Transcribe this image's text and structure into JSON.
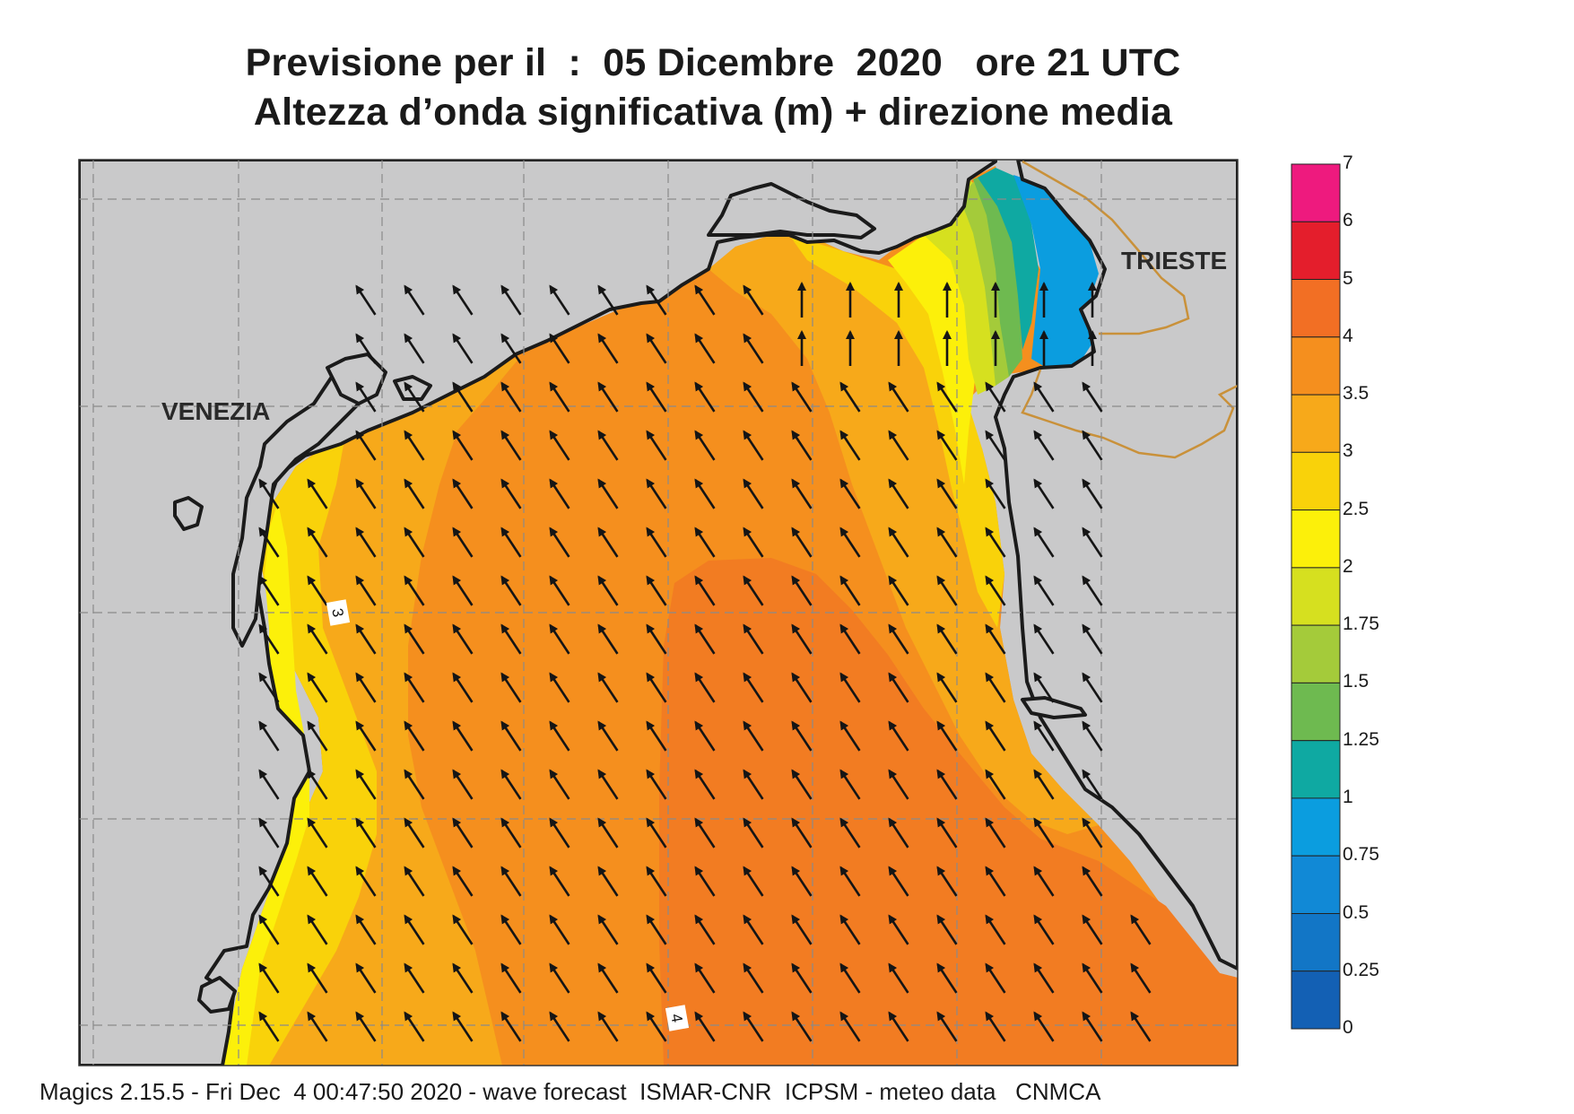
{
  "title": {
    "line1": "Previsione per il  :  05 Dicembre  2020   ore 21 UTC",
    "line2": "Altezza d’onda significativa (m) + direzione media"
  },
  "map": {
    "cities": [
      {
        "name": "VENEZIA"
      },
      {
        "name": "TRIESTE"
      }
    ],
    "contour_labels": [
      "3",
      "4"
    ],
    "arrow_direction": "north-west"
  },
  "legend": {
    "levels": [
      "7",
      "6",
      "5",
      "4",
      "3.5",
      "3",
      "2.5",
      "2",
      "1.75",
      "1.5",
      "1.25",
      "1",
      "0.75",
      "0.5",
      "0.25",
      "0"
    ],
    "colors": [
      "#EE1A7E",
      "#E41E2C",
      "#F26F24",
      "#F58F1E",
      "#F7A91A",
      "#F9D20A",
      "#FCF00A",
      "#D6E01F",
      "#A4CB3A",
      "#6EBA50",
      "#0FA9A2",
      "#0B9DDF",
      "#1189D6",
      "#1276C6",
      "#1360B4"
    ]
  },
  "palette": {
    "land": "#C9C9CA",
    "coast": "#1b1b1b",
    "border": "#C9913A",
    "grid": "#8a8a8a"
  },
  "footer": "Magics 2.15.5 - Fri Dec  4 00:47:50 2020 - wave forecast  ISMAR-CNR  ICPSM - meteo data   CNMCA"
}
